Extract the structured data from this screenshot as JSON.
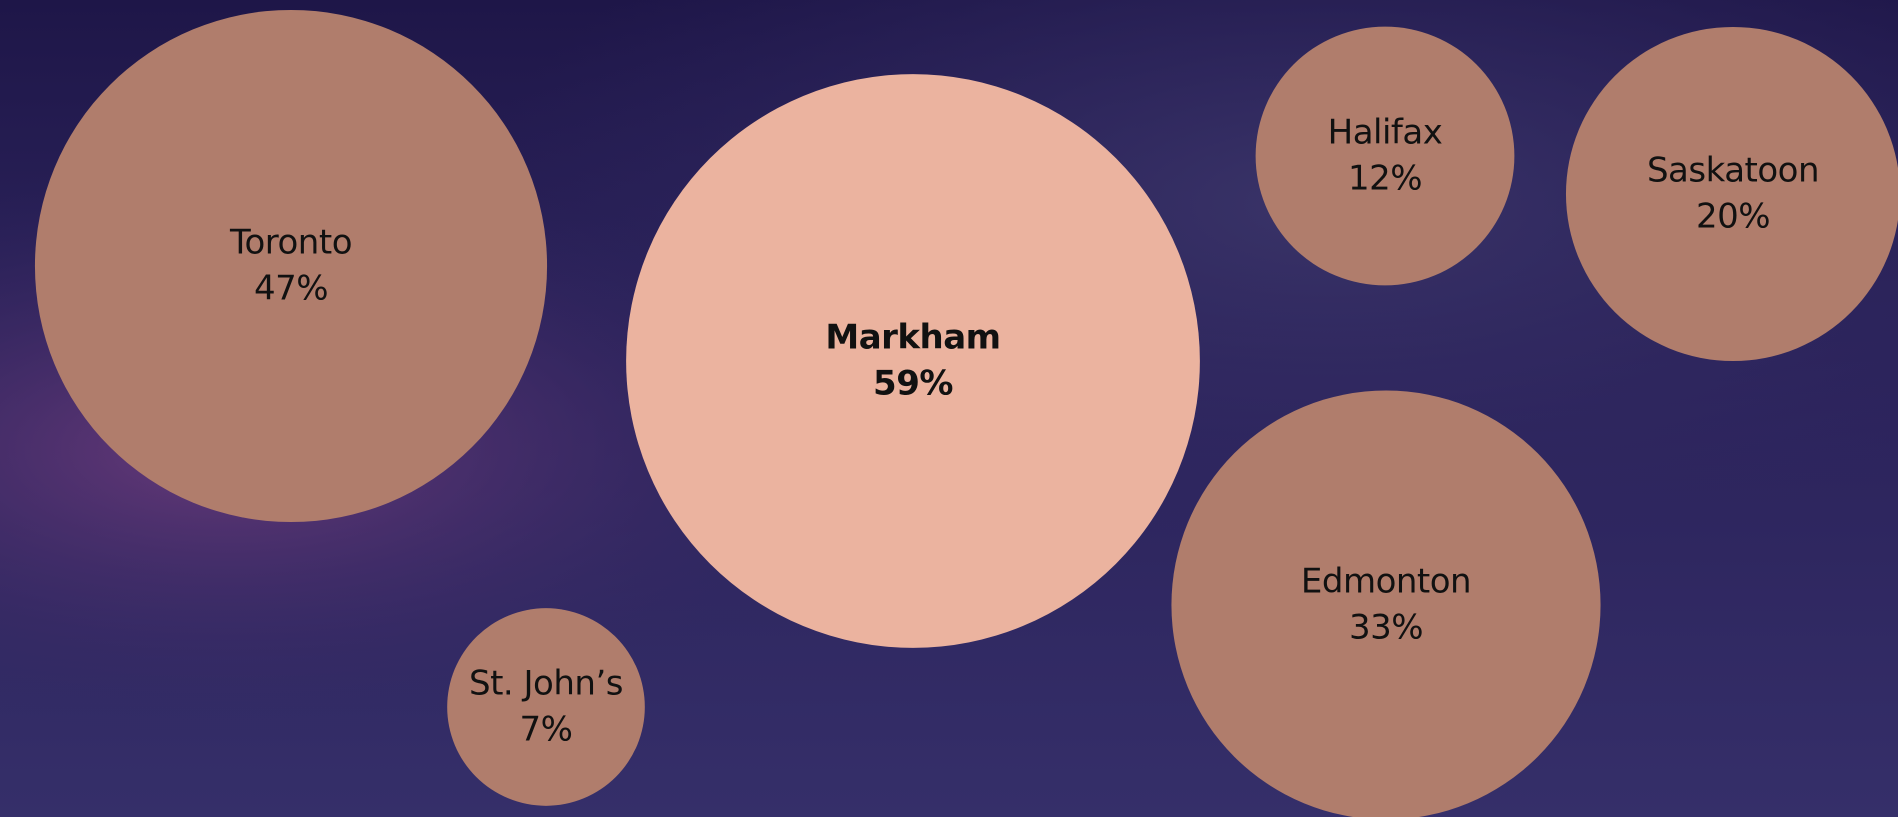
{
  "chart_data": {
    "type": "bubble",
    "categories": [
      "Toronto",
      "Markham",
      "Halifax",
      "Saskatoon",
      "Edmonton",
      "St. John’s"
    ],
    "values": [
      47,
      59,
      12,
      20,
      33,
      7
    ],
    "value_labels": [
      "47%",
      "59%",
      "12%",
      "20%",
      "33%",
      "7%"
    ],
    "color": "#b07d6c",
    "highlight": "Markham",
    "highlight_color": "#ebb39f"
  }
}
